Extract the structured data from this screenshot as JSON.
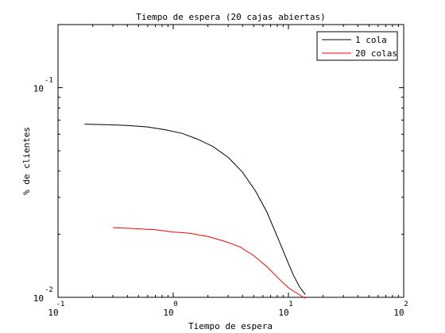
{
  "chart_data": {
    "type": "line",
    "title": "Tiempo de espera (20 cajas abiertas)",
    "xlabel": "Tiempo de espera",
    "ylabel": "% de clientes",
    "xscale": "log",
    "yscale": "log",
    "xlim": [
      0.1,
      100
    ],
    "ylim": [
      0.01,
      0.2
    ],
    "x_ticks": [
      {
        "base": "10",
        "exp": "-1",
        "value": 0.1
      },
      {
        "base": "10",
        "exp": "0",
        "value": 1
      },
      {
        "base": "10",
        "exp": "1",
        "value": 10
      },
      {
        "base": "10",
        "exp": "2",
        "value": 100
      }
    ],
    "y_ticks": [
      {
        "base": "10",
        "exp": "-2",
        "value": 0.01
      },
      {
        "base": "10",
        "exp": "-1",
        "value": 0.1
      }
    ],
    "grid": false,
    "legend_position": "top-right",
    "series": [
      {
        "name": "1 cola",
        "color": "#000000",
        "x": [
          0.17,
          0.28,
          0.4,
          0.6,
          0.85,
          1.2,
          1.6,
          2.2,
          3.0,
          4.0,
          5.2,
          6.5,
          8.0,
          9.5,
          11.0,
          12.5,
          14.0
        ],
        "y": [
          0.067,
          0.0665,
          0.066,
          0.065,
          0.063,
          0.0605,
          0.057,
          0.0525,
          0.0465,
          0.0395,
          0.032,
          0.0255,
          0.0195,
          0.0155,
          0.0128,
          0.0112,
          0.0103
        ]
      },
      {
        "name": "20 colas",
        "color": "#ff0000",
        "x": [
          0.3,
          0.45,
          0.7,
          1.0,
          1.4,
          2.0,
          2.8,
          3.8,
          5.0,
          6.5,
          8.2,
          10.0,
          12.0,
          14.0
        ],
        "y": [
          0.0215,
          0.0213,
          0.021,
          0.0205,
          0.0202,
          0.0195,
          0.0185,
          0.0174,
          0.0158,
          0.014,
          0.0123,
          0.0111,
          0.0104,
          0.0099
        ]
      }
    ]
  }
}
